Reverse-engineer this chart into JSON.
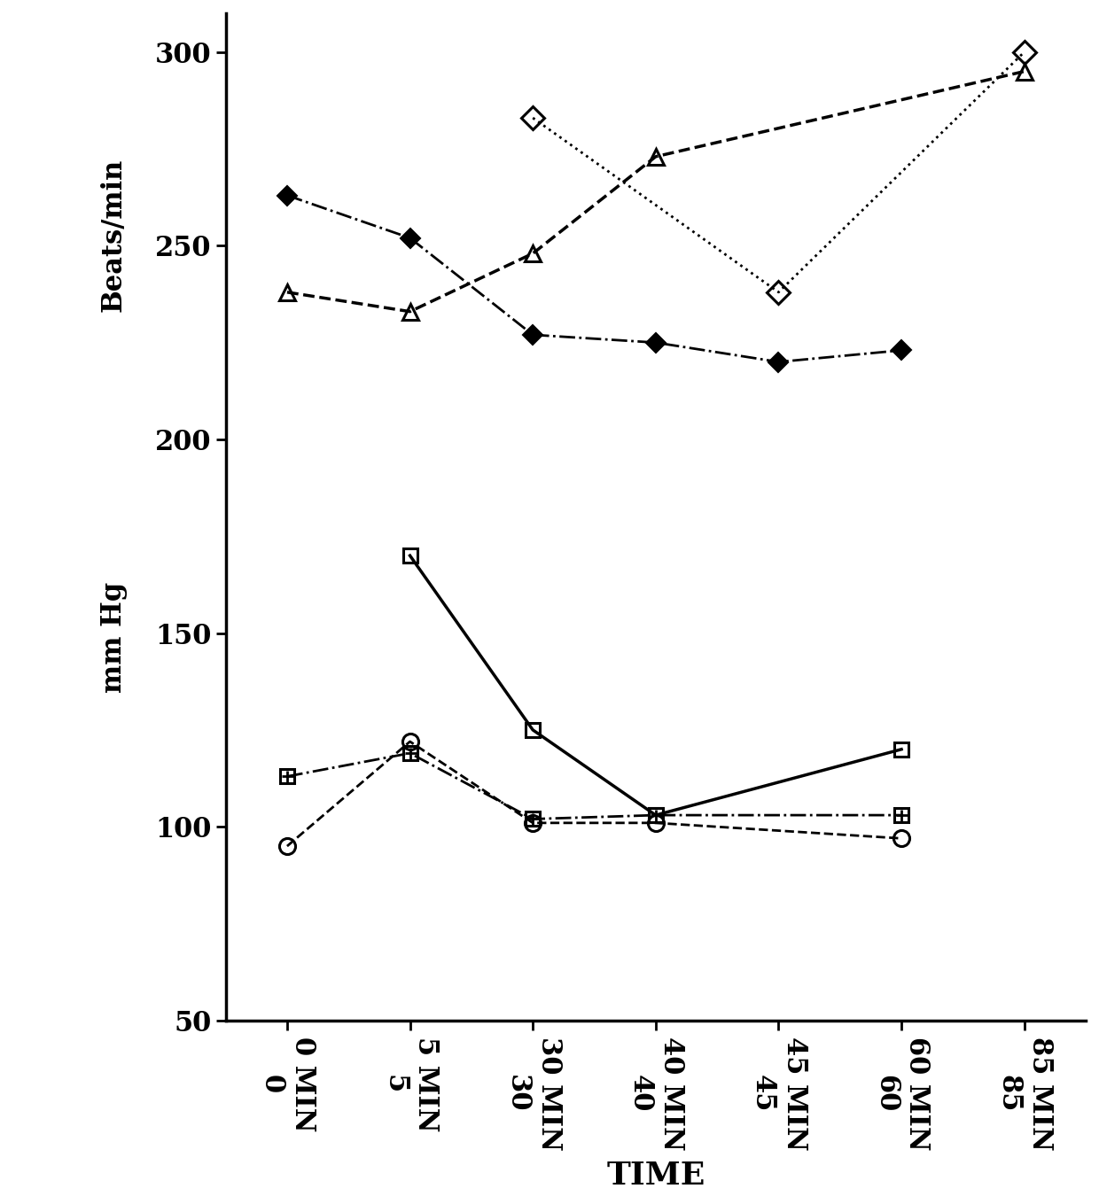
{
  "x_positions": [
    0,
    1,
    2,
    3,
    4,
    5,
    6
  ],
  "x_labels": [
    "0 MIN\n0",
    "5 MIN\n5",
    "30 MIN\n30",
    "40 MIN\n40",
    "45 MIN\n45",
    "60 MIN\n60",
    "85 MIN\n85"
  ],
  "xlabel": "TIME",
  "ylabel_top": "Beats/min",
  "ylabel_bottom": "mm Hg",
  "ylim": [
    50,
    310
  ],
  "yticks": [
    50,
    100,
    150,
    200,
    250,
    300
  ],
  "series": [
    {
      "name": "open_diamond",
      "x": [
        2,
        4,
        6
      ],
      "y": [
        283,
        238,
        300
      ],
      "marker": "D",
      "fillstyle": "none",
      "linestyle": "dotted",
      "color": "black",
      "linewidth": 2.0,
      "markersize": 13,
      "cross": false
    },
    {
      "name": "open_triangle",
      "x": [
        0,
        1,
        2,
        3,
        6
      ],
      "y": [
        238,
        233,
        248,
        273,
        295
      ],
      "marker": "^",
      "fillstyle": "none",
      "linestyle": "dashed",
      "color": "black",
      "linewidth": 2.5,
      "markersize": 13,
      "cross": false
    },
    {
      "name": "filled_diamond",
      "x": [
        0,
        1,
        2,
        3,
        4,
        5
      ],
      "y": [
        263,
        252,
        227,
        225,
        220,
        223
      ],
      "marker": "D",
      "fillstyle": "full",
      "linestyle": "dashdot",
      "color": "black",
      "linewidth": 2.0,
      "markersize": 11,
      "cross": false
    },
    {
      "name": "open_square",
      "x": [
        1,
        2,
        3,
        5
      ],
      "y": [
        170,
        125,
        103,
        120
      ],
      "marker": "s",
      "fillstyle": "none",
      "linestyle": "solid",
      "color": "black",
      "linewidth": 2.5,
      "markersize": 12,
      "cross": false
    },
    {
      "name": "open_circle",
      "x": [
        0,
        1,
        2,
        3,
        5
      ],
      "y": [
        95,
        122,
        101,
        101,
        97
      ],
      "marker": "o",
      "fillstyle": "none",
      "linestyle": "dashed",
      "color": "black",
      "linewidth": 2.0,
      "markersize": 13,
      "cross": false
    },
    {
      "name": "crossed_square",
      "x": [
        0,
        1,
        2,
        3,
        5
      ],
      "y": [
        113,
        119,
        102,
        103,
        103
      ],
      "marker": "s",
      "fillstyle": "none",
      "linestyle": "dashdot",
      "color": "black",
      "linewidth": 2.0,
      "markersize": 12,
      "cross": true
    }
  ],
  "background_color": "#ffffff",
  "tick_fontsize": 22,
  "xlabel_fontsize": 26,
  "ylabel_fontsize": 22,
  "spine_linewidth": 2.5
}
